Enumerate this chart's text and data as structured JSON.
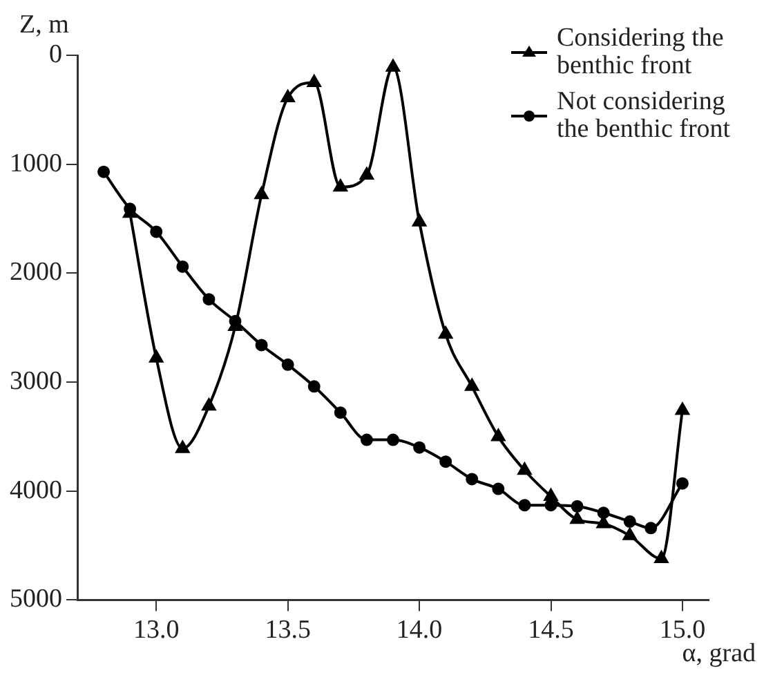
{
  "chart_data": {
    "type": "line",
    "xlabel": "α, grad",
    "ylabel": "Z, m",
    "xlim": [
      12.7,
      15.1
    ],
    "xticks": [
      {
        "value": 13,
        "label": "13.0"
      },
      {
        "value": 13.5,
        "label": "13.5"
      },
      {
        "value": 14,
        "label": "14.0"
      },
      {
        "value": 14.5,
        "label": "14.5"
      },
      {
        "value": 15,
        "label": "15.0"
      }
    ],
    "ylim": [
      5000,
      0
    ],
    "yticks": [
      0,
      1000,
      2000,
      3000,
      4000,
      5000
    ],
    "grid": false,
    "legend": "top right",
    "line_style": "solid",
    "series": [
      {
        "name": "Considering the benthic front",
        "color": "#000000",
        "marker": "triangle",
        "x": [
          12.9,
          13.0,
          13.1,
          13.2,
          13.3,
          13.4,
          13.5,
          13.6,
          13.7,
          13.8,
          13.9,
          14.0,
          14.1,
          14.2,
          14.3,
          14.4,
          14.5,
          14.6,
          14.7,
          14.8,
          14.92,
          15.0
        ],
        "values": [
          1450,
          2780,
          3610,
          3220,
          2490,
          1280,
          390,
          250,
          1210,
          1100,
          110,
          1530,
          2560,
          3040,
          3500,
          3810,
          4050,
          4260,
          4300,
          4410,
          4620,
          3260
        ]
      },
      {
        "name": "Not considering the benthic front",
        "color": "#000000",
        "marker": "circle",
        "x": [
          12.8,
          12.9,
          13.0,
          13.1,
          13.2,
          13.3,
          13.4,
          13.5,
          13.6,
          13.7,
          13.8,
          13.9,
          14.0,
          14.1,
          14.2,
          14.3,
          14.4,
          14.5,
          14.6,
          14.7,
          14.8,
          14.88,
          15.0
        ],
        "values": [
          1070,
          1410,
          1620,
          1940,
          2240,
          2440,
          2660,
          2840,
          3040,
          3280,
          3530,
          3530,
          3600,
          3730,
          3890,
          3980,
          4130,
          4130,
          4140,
          4200,
          4280,
          4340,
          3930
        ]
      }
    ]
  }
}
